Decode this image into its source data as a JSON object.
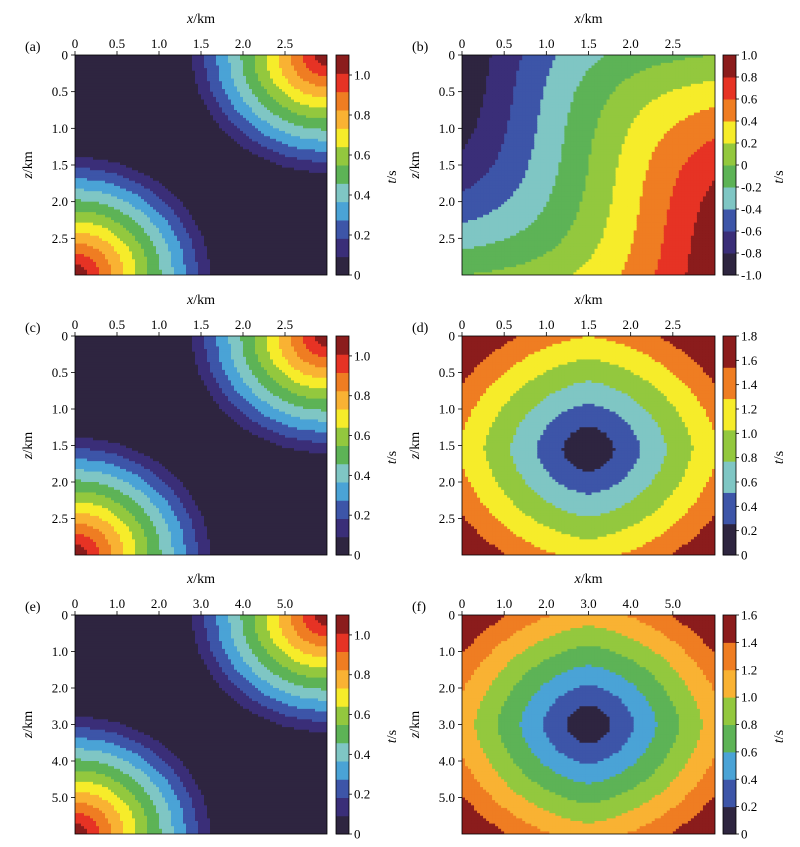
{
  "colormap": [
    "#2e2540",
    "#3a2e78",
    "#3d55a8",
    "#4aa3d6",
    "#7fc6c4",
    "#5db356",
    "#93c83e",
    "#f6ec2a",
    "#f9b233",
    "#ef7d22",
    "#e63324",
    "#8b1c1c"
  ],
  "chart_data": [
    {
      "panel": "(a)",
      "type": "heatmap",
      "title": "",
      "xlabel": "x/km",
      "ylabel": "z/km",
      "xlim": [
        0,
        3
      ],
      "ylim": [
        3,
        0
      ],
      "xticks": [
        "0",
        "0.5",
        "1.0",
        "1.5",
        "2.0",
        "2.5"
      ],
      "yticks": [
        "0",
        "0.5",
        "1.0",
        "1.5",
        "2.0",
        "2.5"
      ],
      "colorbar": {
        "label": "t/s",
        "min": 0,
        "max": 1.1,
        "ticks": [
          "0",
          "0.2",
          "0.4",
          "0.6",
          "0.8",
          "1.0"
        ]
      },
      "field": "two_corner_sources",
      "sources": [
        {
          "x": 0,
          "z": 3
        },
        {
          "x": 3,
          "z": 0
        }
      ],
      "radius": 1.75,
      "peak": 1.1,
      "levels": 12
    },
    {
      "panel": "(b)",
      "type": "heatmap",
      "title": "",
      "xlabel": "x/km",
      "ylabel": "z/km",
      "xlim": [
        0,
        3
      ],
      "ylim": [
        3,
        0
      ],
      "xticks": [
        "0",
        "0.5",
        "1.0",
        "1.5",
        "2.0",
        "2.5"
      ],
      "yticks": [
        "0",
        "0.5",
        "1.0",
        "1.5",
        "2.0",
        "2.5"
      ],
      "colorbar": {
        "label": "t/s",
        "min": -1.0,
        "max": 1.0,
        "ticks": [
          "-1.0",
          "-0.8",
          "-0.6",
          "-0.4",
          "-0.2",
          "0",
          "0.2",
          "0.4",
          "0.6",
          "0.8",
          "1.0"
        ]
      },
      "field": "traveltime_difference",
      "min": -1.0,
      "max": 1.0,
      "levels": 10
    },
    {
      "panel": "(c)",
      "type": "heatmap",
      "title": "",
      "xlabel": "x/km",
      "ylabel": "z/km",
      "xlim": [
        0,
        3
      ],
      "ylim": [
        3,
        0
      ],
      "xticks": [
        "0",
        "0.5",
        "1.0",
        "1.5",
        "2.0",
        "2.5"
      ],
      "yticks": [
        "0",
        "0.5",
        "1.0",
        "1.5",
        "2.0",
        "2.5"
      ],
      "colorbar": {
        "label": "t/s",
        "min": 0,
        "max": 1.1,
        "ticks": [
          "0",
          "0.2",
          "0.4",
          "0.6",
          "0.8",
          "1.0"
        ]
      },
      "field": "two_corner_sources",
      "sources": [
        {
          "x": 0,
          "z": 3
        },
        {
          "x": 3,
          "z": 0
        }
      ],
      "radius": 1.75,
      "peak": 1.1,
      "levels": 12
    },
    {
      "panel": "(d)",
      "type": "heatmap",
      "title": "",
      "xlabel": "x/km",
      "ylabel": "z/km",
      "xlim": [
        0,
        3
      ],
      "ylim": [
        3,
        0
      ],
      "xticks": [
        "0",
        "0.5",
        "1.0",
        "1.5",
        "2.0",
        "2.5"
      ],
      "yticks": [
        "0",
        "0.5",
        "1.0",
        "1.5",
        "2.0",
        "2.5"
      ],
      "colorbar": {
        "label": "t/s",
        "min": 0,
        "max": 1.8,
        "ticks": [
          "0",
          "0.2",
          "0.4",
          "0.6",
          "0.8",
          "1.0",
          "1.2",
          "1.4",
          "1.6",
          "1.8"
        ]
      },
      "field": "central_source",
      "source": {
        "x": 1.5,
        "z": 1.55
      },
      "min": 0,
      "max": 1.8,
      "levels": 7
    },
    {
      "panel": "(e)",
      "type": "heatmap",
      "title": "",
      "xlabel": "x/km",
      "ylabel": "z/km",
      "xlim": [
        0,
        6
      ],
      "ylim": [
        6,
        0
      ],
      "xticks": [
        "0",
        "1.0",
        "2.0",
        "3.0",
        "4.0",
        "5.0"
      ],
      "yticks": [
        "0",
        "1.0",
        "2.0",
        "3.0",
        "4.0",
        "5.0"
      ],
      "colorbar": {
        "label": "t/s",
        "min": 0,
        "max": 1.1,
        "ticks": [
          "0",
          "0.2",
          "0.4",
          "0.6",
          "0.8",
          "1.0"
        ]
      },
      "field": "two_corner_sources",
      "sources": [
        {
          "x": 0,
          "z": 6
        },
        {
          "x": 6,
          "z": 0
        }
      ],
      "radius": 3.5,
      "peak": 1.1,
      "levels": 12
    },
    {
      "panel": "(f)",
      "type": "heatmap",
      "title": "",
      "xlabel": "x/km",
      "ylabel": "z/km",
      "xlim": [
        0,
        6
      ],
      "ylim": [
        6,
        0
      ],
      "xticks": [
        "0",
        "1.0",
        "2.0",
        "3.0",
        "4.0",
        "5.0"
      ],
      "yticks": [
        "0",
        "1.0",
        "2.0",
        "3.0",
        "4.0",
        "5.0"
      ],
      "colorbar": {
        "label": "t/s",
        "min": 0,
        "max": 1.6,
        "ticks": [
          "0",
          "0.2",
          "0.4",
          "0.6",
          "0.8",
          "1.0",
          "1.2",
          "1.4",
          "1.6"
        ]
      },
      "field": "central_source",
      "source": {
        "x": 3,
        "z": 3
      },
      "min": 0,
      "max": 1.6,
      "levels": 8
    }
  ]
}
